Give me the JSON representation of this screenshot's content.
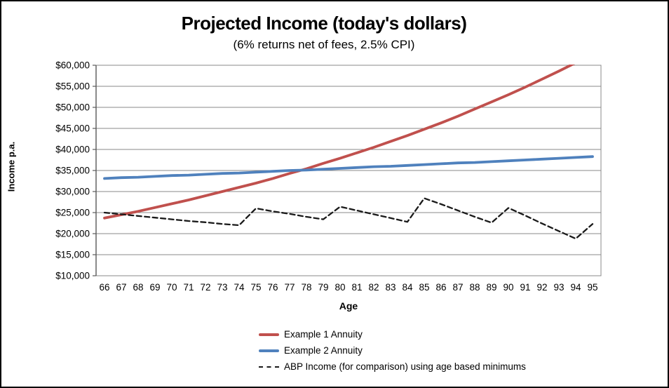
{
  "window": {
    "background": "#ffffff",
    "border_color": "#000000"
  },
  "chart_data": {
    "type": "line",
    "title": "Projected Income (today's dollars)",
    "subtitle": "(6% returns net of fees, 2.5% CPI)",
    "xlabel": "Age",
    "ylabel": "Income p.a.",
    "x": [
      66,
      67,
      68,
      69,
      70,
      71,
      72,
      73,
      74,
      75,
      76,
      77,
      78,
      79,
      80,
      81,
      82,
      83,
      84,
      85,
      86,
      87,
      88,
      89,
      90,
      91,
      92,
      93,
      94,
      95
    ],
    "ylim": [
      10000,
      60000
    ],
    "ytick_interval": 5000,
    "ytick_labels": [
      "$10,000",
      "$15,000",
      "$20,000",
      "$25,000",
      "$30,000",
      "$35,000",
      "$40,000",
      "$45,000",
      "$50,000",
      "$55,000",
      "$60,000"
    ],
    "grid": true,
    "legend_position": "bottom",
    "axis_color": "#595959",
    "grid_color": "#8a8a8a",
    "text_color": "#000000",
    "series": [
      {
        "name": "Example 1 Annuity",
        "color": "#C0504D",
        "style": "solid",
        "width": 3.8,
        "values": [
          23700,
          24500,
          25300,
          26200,
          27100,
          28000,
          29000,
          30000,
          31000,
          32000,
          33100,
          34300,
          35400,
          36700,
          37900,
          39200,
          40500,
          41900,
          43300,
          44800,
          46300,
          47900,
          49600,
          51300,
          53000,
          54800,
          56700,
          58600,
          60600,
          62700
        ]
      },
      {
        "name": "Example 2 Annuity",
        "color": "#4F81BD",
        "style": "solid",
        "width": 3.8,
        "values": [
          33100,
          33300,
          33400,
          33600,
          33800,
          33900,
          34100,
          34300,
          34400,
          34600,
          34800,
          35000,
          35100,
          35300,
          35500,
          35700,
          35900,
          36000,
          36200,
          36400,
          36600,
          36800,
          36900,
          37100,
          37300,
          37500,
          37700,
          37900,
          38100,
          38300
        ]
      },
      {
        "name": "ABP Income (for comparison) using age based minimums",
        "color": "#1a1a1a",
        "style": "dashed",
        "width": 2.3,
        "values": [
          25000,
          24600,
          24200,
          23800,
          23400,
          23000,
          22700,
          22300,
          22000,
          26000,
          25300,
          24700,
          24000,
          23400,
          26400,
          25500,
          24600,
          23700,
          22800,
          28400,
          27000,
          25500,
          24000,
          22600,
          26100,
          24300,
          22400,
          20600,
          18800,
          22300
        ]
      }
    ]
  }
}
